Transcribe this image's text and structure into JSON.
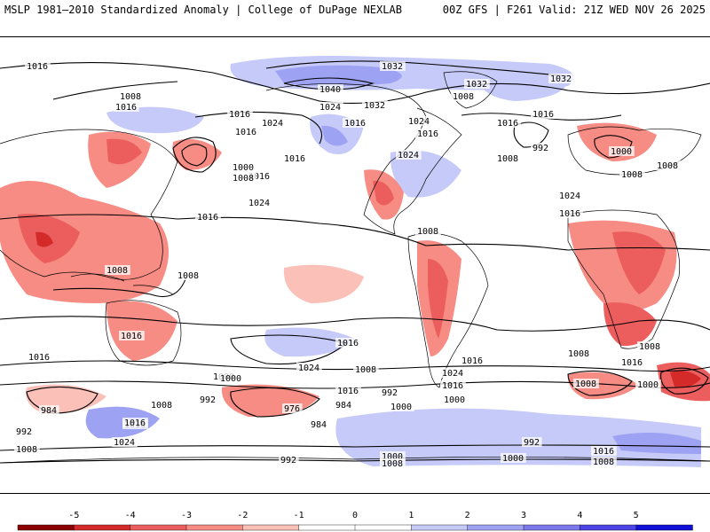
{
  "header": {
    "left": "MSLP 1981–2010 Standardized Anomaly | College of DuPage NEXLAB",
    "right": "00Z GFS | F261 Valid: 21Z WED NOV 26 2025"
  },
  "colors": {
    "neg5": "#8b0000",
    "neg4": "#d42a2a",
    "neg3": "#ec5e5e",
    "neg2": "#f68c84",
    "neg1": "#fbc0b8",
    "zero": "#ffffff",
    "pos1": "#c6caf8",
    "pos2": "#9ea2f2",
    "pos3": "#7a78ea",
    "pos4": "#4c44e4",
    "pos5": "#1010d8",
    "contour": "#000000",
    "land": "#000000"
  },
  "colorbar": {
    "ticks": [
      "-5",
      "-4",
      "-3",
      "-2",
      "-1",
      "0",
      "1",
      "2",
      "3",
      "4",
      "5"
    ]
  },
  "isobar_labels": [
    "1016",
    "1008",
    "1016",
    "1024",
    "1032",
    "1016",
    "1016",
    "1016",
    "1016",
    "1024",
    "1040",
    "1032",
    "1032",
    "1016",
    "1008",
    "1032",
    "1024",
    "1016",
    "1008",
    "1024",
    "1016",
    "1016",
    "1000",
    "1008",
    "1024",
    "992",
    "1000",
    "1008",
    "1008",
    "1016",
    "1024",
    "1016",
    "1008",
    "1008",
    "1008",
    "1016",
    "1016",
    "1008",
    "1016",
    "1024",
    "1016",
    "1008",
    "1000",
    "1024",
    "1016",
    "1008",
    "1016",
    "1000",
    "1008",
    "1016",
    "1000",
    "992",
    "984",
    "1000",
    "1016",
    "976",
    "984",
    "992",
    "1000",
    "992",
    "984",
    "992",
    "1024",
    "1016",
    "1008",
    "1008",
    "992",
    "1000",
    "1008",
    "1000",
    "1016",
    "1008"
  ]
}
